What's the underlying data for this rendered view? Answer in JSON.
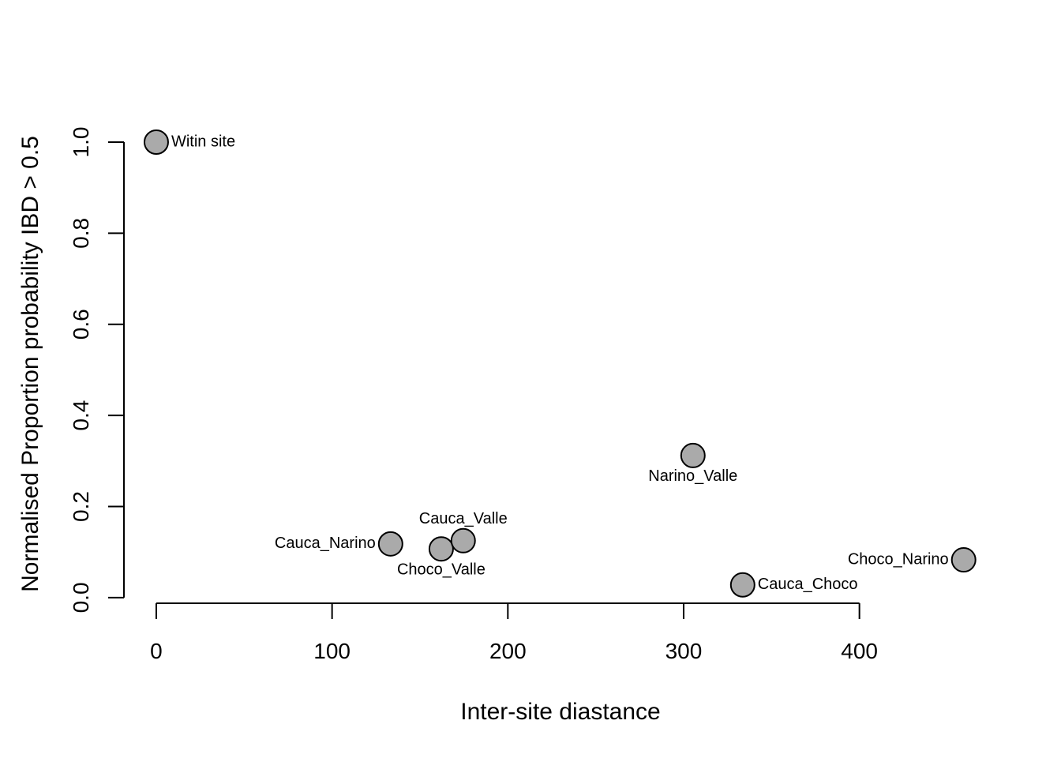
{
  "chart_data": {
    "type": "scatter",
    "xlabel": "Inter-site diastance",
    "ylabel": "Normalised Proportion probability IBD > 0.5",
    "x": [
      0,
      133.3,
      162.1,
      174.6,
      305.3,
      333.6,
      459.3
    ],
    "values": [
      1.0,
      0.118,
      0.107,
      0.125,
      0.312,
      0.028,
      0.083
    ],
    "labels": [
      "Witin site",
      "Cauca_Narino",
      "Choco_Valle",
      "Cauca_Valle",
      "Narino_Valle",
      "Cauca_Choco",
      "Choco_Narino"
    ],
    "color": "#aaaaaa",
    "xlim": [
      -18.4,
      477.4
    ],
    "ylim": [
      -0.014,
      1.039
    ],
    "xticks": [
      0,
      100,
      200,
      300,
      400
    ],
    "yticks": [
      {
        "value": 0,
        "label": "0.0"
      },
      0.2,
      0.4,
      0.6,
      0.8,
      {
        "value": 1,
        "label": "1.0"
      }
    ]
  }
}
